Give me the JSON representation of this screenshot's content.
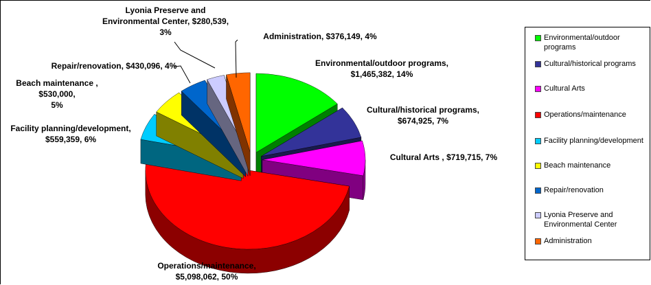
{
  "chart_data": {
    "type": "pie3d",
    "categories": [
      "Environmental/outdoor programs",
      "Cultural/historical programs",
      "Cultural Arts",
      "Operations/maintenance",
      "Facility planning/development",
      "Beach maintenance",
      "Repair/renovation",
      "Lyonia Preserve and Environmental Center",
      "Administration"
    ],
    "values": [
      1465382,
      674925,
      719715,
      5098062,
      559359,
      530000,
      430096,
      280539,
      376149
    ],
    "value_labels": [
      "Environmental/outdoor programs,\n$1,465,382, 14%",
      "Cultural/historical programs,\n$674,925, 7%",
      "Cultural Arts , $719,715, 7%",
      "Operations/maintenance,\n$5,098,062, 50%",
      "Facility planning/development,\n$559,359, 6%",
      "Beach maintenance , $530,000,\n5%",
      "Repair/renovation, $430,096, 4%",
      "Lyonia Preserve and\nEnvironmental Center, $280,539,\n3%",
      "Administration, $376,149, 4%"
    ],
    "colors": [
      "#00ff00",
      "#333399",
      "#ff00ff",
      "#ff0000",
      "#00ccff",
      "#ffff00",
      "#0066cc",
      "#ccccff",
      "#ff6600"
    ],
    "legend": "right"
  }
}
